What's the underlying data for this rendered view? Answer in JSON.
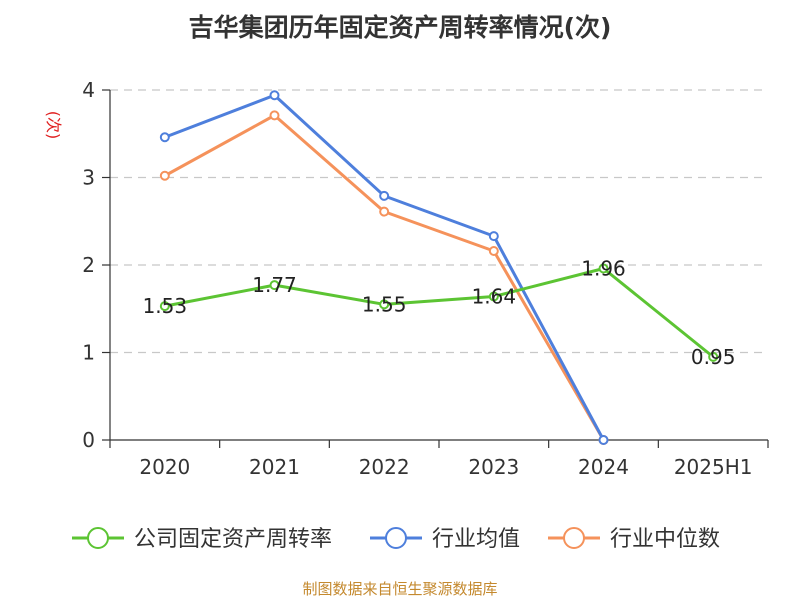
{
  "chart_data": {
    "type": "line",
    "title": "吉华集团历年固定资产周转率情况(次)",
    "ylabel": "(次)",
    "categories": [
      "2020",
      "2021",
      "2022",
      "2023",
      "2024",
      "2025H1"
    ],
    "ylim": [
      0,
      4
    ],
    "yticks": [
      0,
      1,
      2,
      3,
      4
    ],
    "grid": true,
    "legend_position": "bottom",
    "series": [
      {
        "name": "公司固定资产周转率",
        "color": "#5cc433",
        "values": [
          1.53,
          1.77,
          1.55,
          1.64,
          1.96,
          0.95
        ],
        "labels": [
          "1.53",
          "1.77",
          "1.55",
          "1.64",
          "1.96",
          "0.95"
        ]
      },
      {
        "name": "行业均值",
        "color": "#4e7fdc",
        "values": [
          3.46,
          3.94,
          2.79,
          2.33,
          0,
          null
        ]
      },
      {
        "name": "行业中位数",
        "color": "#f5925b",
        "values": [
          3.02,
          3.71,
          2.61,
          2.16,
          0,
          null
        ]
      }
    ]
  },
  "source_text": "制图数据来自恒生聚源数据库"
}
